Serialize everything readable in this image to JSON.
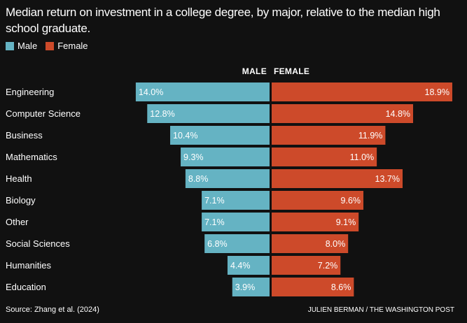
{
  "title": "Median return on investment in a college degree, by major, relative to the median high school graduate.",
  "legend": [
    {
      "label": "Male",
      "color": "#65b3c3"
    },
    {
      "label": "Female",
      "color": "#cd4a2a"
    }
  ],
  "headers": {
    "male": "MALE",
    "female": "FEMALE"
  },
  "source": "Source: Zhang et al. (2024)",
  "credit": "JULIEN BERMAN / THE WASHINGTON POST",
  "chart_data": {
    "type": "bar",
    "orientation": "horizontal-diverging",
    "categories": [
      "Engineering",
      "Computer Science",
      "Business",
      "Mathematics",
      "Health",
      "Biology",
      "Other",
      "Social Sciences",
      "Humanities",
      "Education"
    ],
    "series": [
      {
        "name": "Male",
        "color": "#65b3c3",
        "values": [
          14.0,
          12.8,
          10.4,
          9.3,
          8.8,
          7.1,
          7.1,
          6.8,
          4.4,
          3.9
        ]
      },
      {
        "name": "Female",
        "color": "#cd4a2a",
        "values": [
          18.9,
          14.8,
          11.9,
          11.0,
          13.7,
          9.6,
          9.1,
          8.0,
          7.2,
          8.6
        ]
      }
    ],
    "value_format": "%",
    "grid": false,
    "legend_position": "top-left"
  }
}
